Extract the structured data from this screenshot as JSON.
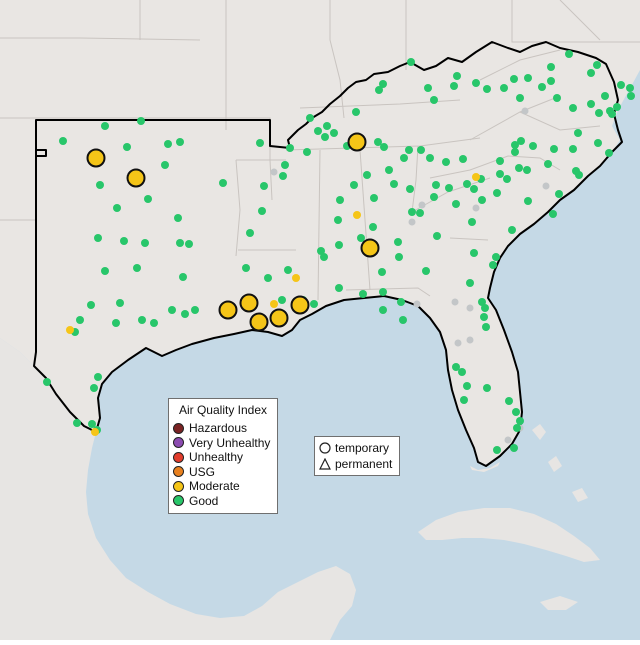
{
  "map": {
    "colors": {
      "water": "#c5d9e6",
      "land": "#e9e6e3",
      "foreign_land": "#e7e5e3",
      "state_border": "#c9c4c0",
      "region_outline": "#000000"
    },
    "aqi_colors": {
      "good": "#28c66a",
      "moderate": "#f5c518",
      "usg": "#e8801f",
      "unhealthy": "#e23c2c",
      "very_unhealthy": "#8b4bb0",
      "hazardous": "#7a2323",
      "no_data": "#c3c6c8"
    },
    "monitors_moderate": 13,
    "monitors_good": 220
  },
  "legend": {
    "title": "Air Quality Index",
    "items": [
      {
        "label": "Hazardous",
        "color": "#7a2323"
      },
      {
        "label": "Very Unhealthy",
        "color": "#8b4bb0"
      },
      {
        "label": "Unhealthy",
        "color": "#e23c2c"
      },
      {
        "label": "USG",
        "color": "#e8801f"
      },
      {
        "label": "Moderate",
        "color": "#f5c518"
      },
      {
        "label": "Good",
        "color": "#28c66a"
      }
    ],
    "types": {
      "temporary": "temporary",
      "permanent": "permanent"
    }
  }
}
